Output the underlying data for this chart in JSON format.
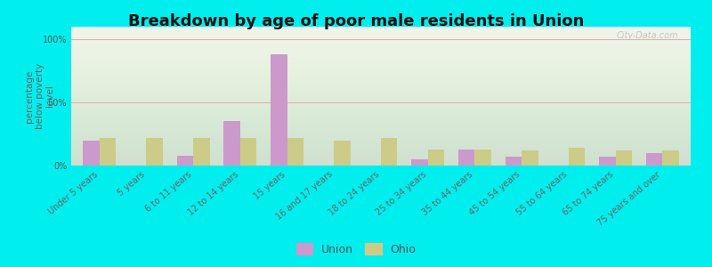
{
  "title": "Breakdown by age of poor male residents in Union",
  "ylabel": "percentage\nbelow poverty\nlevel",
  "categories": [
    "Under 5 years",
    "5 years",
    "6 to 11 years",
    "12 to 14 years",
    "15 years",
    "16 and 17 years",
    "18 to 24 years",
    "25 to 34 years",
    "35 to 44 years",
    "45 to 54 years",
    "55 to 64 years",
    "65 to 74 years",
    "75 years and over"
  ],
  "union_values": [
    20,
    0,
    8,
    35,
    88,
    0,
    0,
    5,
    13,
    7,
    0,
    7,
    10
  ],
  "ohio_values": [
    22,
    22,
    22,
    22,
    22,
    20,
    22,
    13,
    13,
    12,
    14,
    12,
    12
  ],
  "union_color": "#cc99cc",
  "ohio_color": "#cccc88",
  "background_color": "#00eeee",
  "plot_bg_color": "#eef4e8",
  "ylim": [
    0,
    110
  ],
  "yticks": [
    0,
    50,
    100
  ],
  "ytick_labels": [
    "0%",
    "50%",
    "100%"
  ],
  "bar_width": 0.35,
  "legend_union": "Union",
  "legend_ohio": "Ohio",
  "watermark": "City-Data.com",
  "title_fontsize": 13,
  "axis_label_fontsize": 7.5,
  "tick_fontsize": 7,
  "legend_fontsize": 9
}
